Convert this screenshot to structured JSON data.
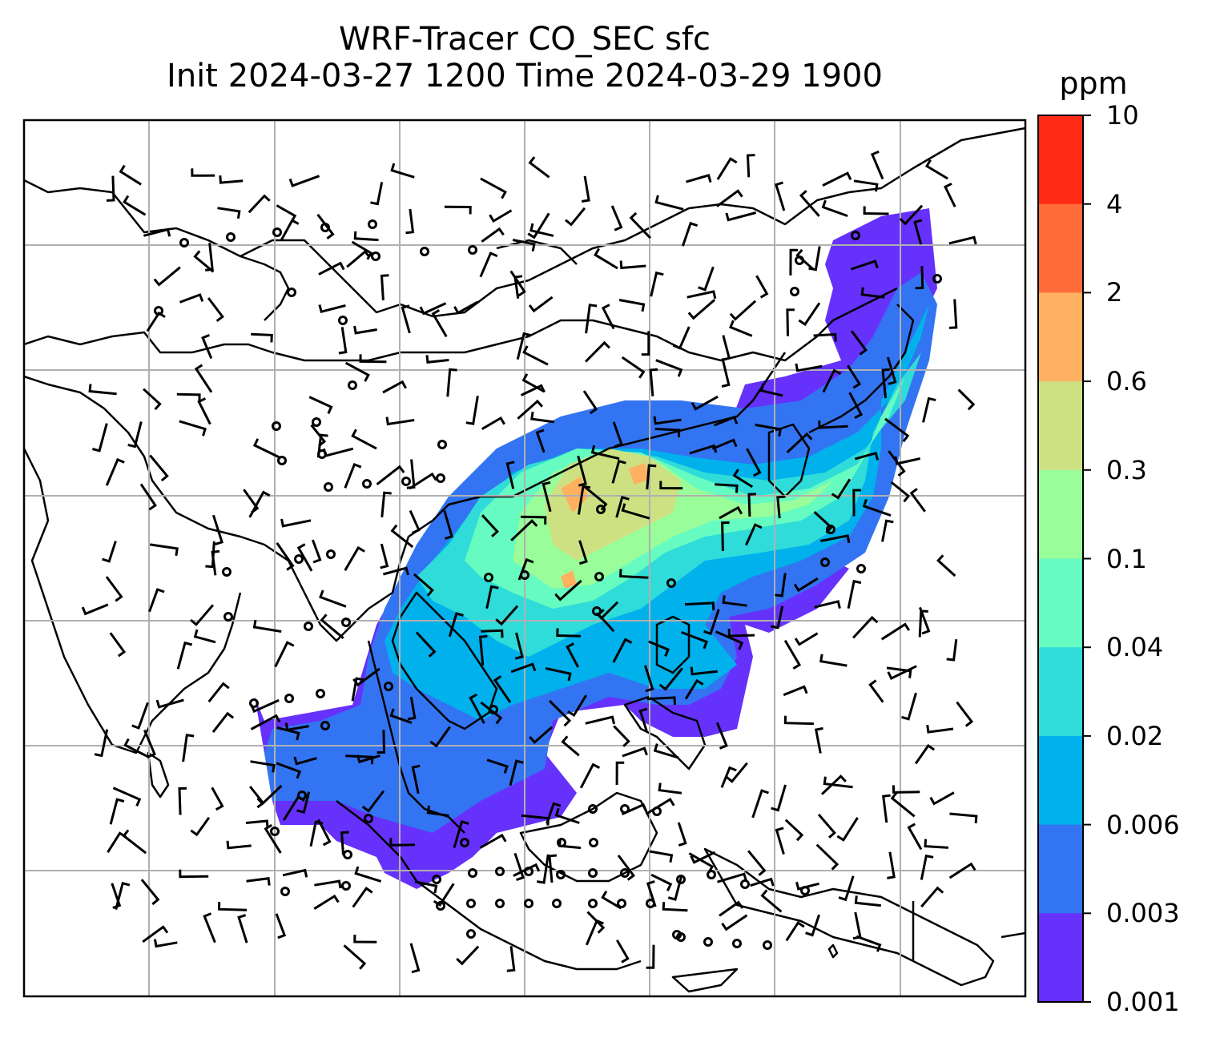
{
  "title": {
    "line1": "WRF-Tracer CO_SEC sfc",
    "line2": "Init 2024-03-27 1200 Time 2024-03-29 1900"
  },
  "colorbar": {
    "unit": "ppm",
    "levels": [
      "10",
      "4",
      "2",
      "0.6",
      "0.3",
      "0.1",
      "0.04",
      "0.02",
      "0.006",
      "0.003",
      "0.001"
    ],
    "colors": [
      "#ff2a14",
      "#ff6c3a",
      "#ffb060",
      "#cde183",
      "#99fd9a",
      "#66fbc0",
      "#2fdcd9",
      "#00b1ec",
      "#3374f2",
      "#6631fb"
    ]
  },
  "map": {
    "gridlines": true,
    "coastline_color": "#000000",
    "grid_color": "#b0b0b0"
  }
}
